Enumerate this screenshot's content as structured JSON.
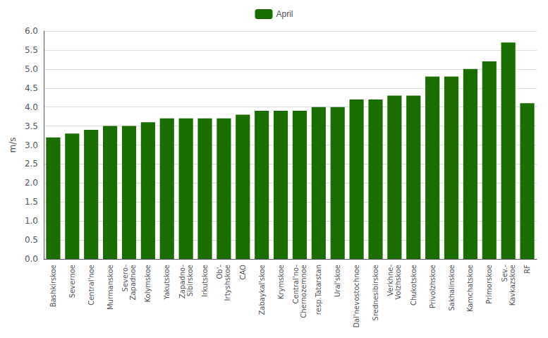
{
  "chart_data": {
    "type": "bar",
    "ylabel": "m/s",
    "categories": [
      "Bashkirskoe",
      "Severnoe",
      "Central'noe",
      "Murmanskoe",
      "Severo-\nZapadnoe",
      "Kolymskoe",
      "Yakutskoe",
      "Zapadno-\nSibirskoe",
      "Irkutskoe",
      "Ob'-\nIrtyshskoe",
      "CAO",
      "Zabaykal'skoe",
      "Krymskoe",
      "Central'no-\nChernozemnoe",
      "resp.Tatarstan",
      "Ural'skoe",
      "Dal'nevostochnoe",
      "Srednesibirskoe",
      "Verkhne-\nVolzhskoe",
      "Chukotskoe",
      "Privolzhskoe",
      "Sakhalinskoe",
      "Kamchatskoe",
      "Primorskoe",
      "Sev.-\nKavkazskoe",
      "RF"
    ],
    "series": [
      {
        "name": "April",
        "color": "#1a6e00",
        "values": [
          3.2,
          3.3,
          3.4,
          3.5,
          3.5,
          3.6,
          3.7,
          3.7,
          3.7,
          3.7,
          3.8,
          3.9,
          3.9,
          3.9,
          4.0,
          4.0,
          4.2,
          4.2,
          4.3,
          4.3,
          4.8,
          4.8,
          5.0,
          5.2,
          5.7,
          4.1
        ]
      }
    ],
    "ylim": [
      0,
      6
    ],
    "yticks": [
      {
        "value": 0,
        "label": "0.0"
      },
      0.5,
      {
        "value": 1,
        "label": "1.0"
      },
      1.5,
      {
        "value": 2,
        "label": "2.0"
      },
      2.5,
      {
        "value": 3,
        "label": "3.0"
      },
      3.5,
      {
        "value": 4,
        "label": "4.0"
      },
      4.5,
      {
        "value": 5,
        "label": "5.0"
      },
      5.5,
      {
        "value": 6,
        "label": "6.0"
      }
    ],
    "grid": true,
    "legend": "top"
  }
}
